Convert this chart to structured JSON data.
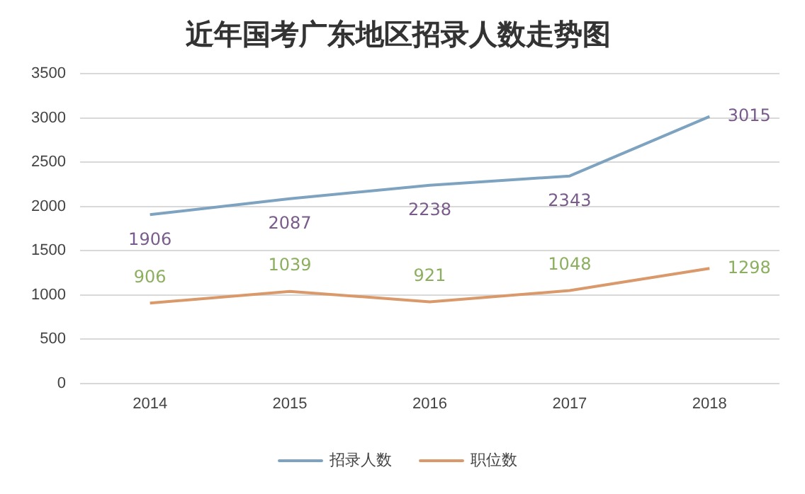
{
  "chart_data": {
    "type": "line",
    "title": "近年国考广东地区招录人数走势图",
    "categories": [
      "2014",
      "2015",
      "2016",
      "2017",
      "2018"
    ],
    "series": [
      {
        "name": "招录人数",
        "color": "#7da3c0",
        "values": [
          1906,
          2087,
          2238,
          2343,
          3015
        ]
      },
      {
        "name": "职位数",
        "color": "#d9996a",
        "values": [
          906,
          1039,
          921,
          1048,
          1298
        ]
      }
    ],
    "ylim": [
      0,
      3500
    ],
    "yticks": [
      0,
      500,
      1000,
      1500,
      2000,
      2500,
      3000,
      3500
    ],
    "grid": "y",
    "legend": "bottom",
    "data_labels": true,
    "marker": "none",
    "line_style": "solid"
  }
}
